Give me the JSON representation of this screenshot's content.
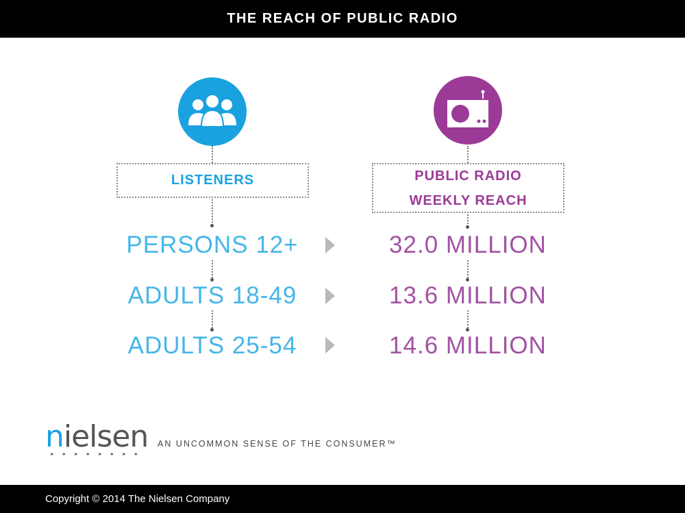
{
  "header": {
    "title": "THE REACH OF PUBLIC RADIO"
  },
  "columns": {
    "left_header": "LISTENERS",
    "right_header_line1": "PUBLIC RADIO",
    "right_header_line2": "WEEKLY REACH"
  },
  "rows": [
    {
      "label": "PERSONS 12+",
      "value": "32.0 MILLION"
    },
    {
      "label": "ADULTS 18-49",
      "value": "13.6 MILLION"
    },
    {
      "label": "ADULTS 25-54",
      "value": "14.6 MILLION"
    }
  ],
  "brand": {
    "logo_first": "n",
    "logo_rest": "ielsen",
    "tagline": "AN UNCOMMON SENSE OF THE CONSUMER™"
  },
  "footer": {
    "copyright": "Copyright © 2014 The Nielsen Company"
  },
  "icons": {
    "left": "people-group-icon",
    "right": "radio-icon"
  },
  "colors": {
    "blue": "#1aa1e0",
    "purple": "#9c3a97",
    "arrow": "#b9b9b9"
  }
}
